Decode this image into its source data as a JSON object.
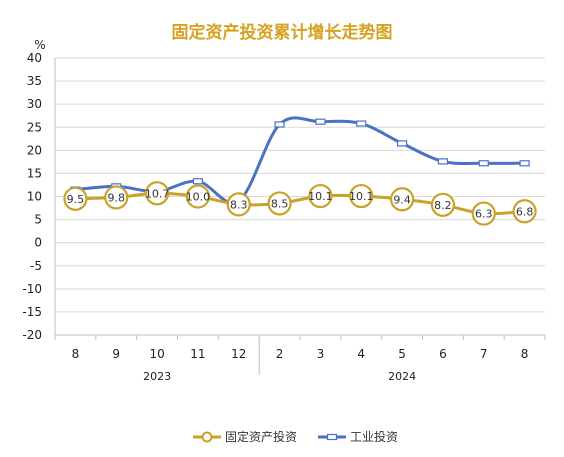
{
  "chart_data": {
    "type": "line",
    "title": "固定资产投资累计增长走势图",
    "y_unit": "%",
    "ylim": [
      -20,
      40
    ],
    "yticks": [
      40,
      35,
      30,
      25,
      20,
      15,
      10,
      5,
      0,
      -5,
      -10,
      -15,
      -20
    ],
    "grid": true,
    "legend_position": "bottom",
    "categories": [
      "8",
      "9",
      "10",
      "11",
      "12",
      "2",
      "3",
      "4",
      "5",
      "6",
      "7",
      "8"
    ],
    "category_groups": [
      {
        "label": "2023",
        "from": 0,
        "to": 4
      },
      {
        "label": "2024",
        "from": 5,
        "to": 11
      }
    ],
    "series": [
      {
        "name": "固定资产投资",
        "values": [
          9.5,
          9.8,
          10.7,
          10.0,
          8.3,
          8.5,
          10.1,
          10.1,
          9.4,
          8.2,
          6.3,
          6.8
        ],
        "labels": [
          "9.5",
          "9.8",
          "10.7",
          "10.0",
          "8.3",
          "8.5",
          "10.1",
          "10.1",
          "9.4",
          "8.2",
          "6.3",
          "6.8"
        ],
        "color": "#c9a227",
        "marker": "circle"
      },
      {
        "name": "工业投资",
        "values": [
          11.5,
          12.2,
          11.1,
          13.3,
          9.0,
          25.6,
          26.2,
          25.8,
          21.5,
          17.6,
          17.2,
          17.2
        ],
        "color": "#4a72c4",
        "marker": "square"
      }
    ]
  }
}
